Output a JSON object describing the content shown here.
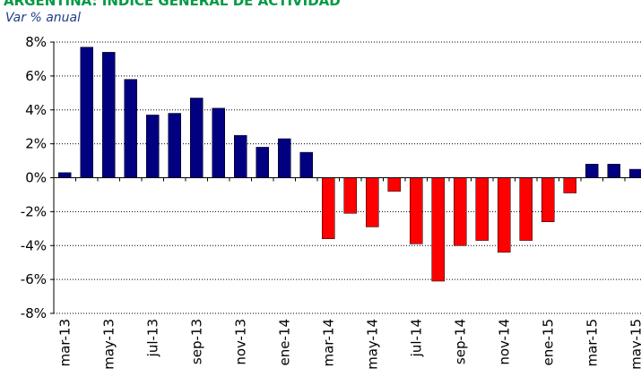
{
  "chart_data": {
    "type": "bar",
    "title": "ARGENTINA: ÍNDICE GENERAL DE ACTIVIDAD",
    "subtitle": "Var % anual",
    "categories": [
      "mar-13",
      null,
      "may-13",
      null,
      "jul-13",
      null,
      "sep-13",
      null,
      "nov-13",
      null,
      "ene-14",
      null,
      "mar-14",
      null,
      "may-14",
      null,
      "jul-14",
      null,
      "sep-14",
      null,
      "nov-14",
      null,
      "ene-15",
      null,
      "mar-15",
      null,
      "may-15"
    ],
    "values": [
      0.3,
      7.7,
      7.4,
      5.8,
      3.7,
      3.8,
      4.7,
      4.1,
      2.5,
      1.8,
      2.3,
      1.5,
      -3.6,
      -2.1,
      -2.9,
      -0.8,
      -3.9,
      -6.1,
      -4.0,
      -3.7,
      -4.4,
      -3.7,
      -2.6,
      -0.9,
      0.8,
      0.8,
      0.5
    ],
    "positive_color": "#000080",
    "negative_color": "#ff0000",
    "ylim": [
      -8,
      8
    ],
    "yticks": [
      {
        "value": -8,
        "label": "-8%"
      },
      {
        "value": -6,
        "label": "-6%"
      },
      {
        "value": -4,
        "label": "-4%"
      },
      {
        "value": -2,
        "label": "-2%"
      },
      {
        "value": 0,
        "label": "0%"
      },
      {
        "value": 2,
        "label": "2%"
      },
      {
        "value": 4,
        "label": "4%"
      },
      {
        "value": 6,
        "label": "6%"
      },
      {
        "value": 8,
        "label": "8%"
      }
    ],
    "grid": true
  }
}
